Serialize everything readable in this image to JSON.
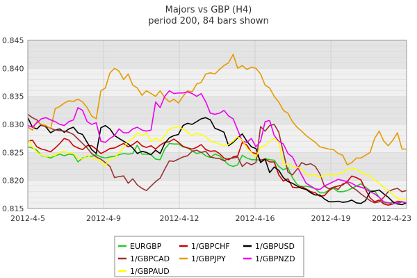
{
  "chart_data": {
    "type": "line",
    "title": "Majors vs GBP (H4)",
    "subtitle": "period 200, 84 bars shown",
    "xlabel": "",
    "ylabel": "",
    "x_ticks": [
      "2012-4-5",
      "2012-4-9",
      "2012-4-12",
      "2012-4-16",
      "2012-4-19",
      "2012-4-23"
    ],
    "y_ticks": [
      "0.815",
      "0.820",
      "0.825",
      "0.830",
      "0.835",
      "0.840",
      "0.845"
    ],
    "ylim": [
      0.815,
      0.845
    ],
    "grid": true,
    "legend_position": "bottom",
    "series": [
      {
        "name": "EURGBP",
        "color": "#22cc22",
        "values": [
          0.826,
          0.8258,
          0.8254,
          0.8244,
          0.8243,
          0.824,
          0.8244,
          0.8247,
          0.8244,
          0.8247,
          0.8246,
          0.8233,
          0.824,
          0.8243,
          0.8243,
          0.8246,
          0.8242,
          0.824,
          0.8242,
          0.8243,
          0.8246,
          0.8248,
          0.8247,
          0.8248,
          0.8263,
          0.8247,
          0.8247,
          0.8246,
          0.8238,
          0.8237,
          0.8256,
          0.8266,
          0.8265,
          0.8265,
          0.826,
          0.8258,
          0.8253,
          0.8248,
          0.825,
          0.8244,
          0.8241,
          0.8247,
          0.8244,
          0.8236,
          0.8228,
          0.8225,
          0.8228,
          0.8245,
          0.824,
          0.8237,
          0.8237,
          0.8236,
          0.8239,
          0.8237,
          0.8236,
          0.8225,
          0.8219,
          0.8223,
          0.8205,
          0.8193,
          0.8189,
          0.819,
          0.8188,
          0.8185,
          0.8178,
          0.8178,
          0.8183,
          0.8186,
          0.818,
          0.818,
          0.8182,
          0.8186,
          0.819,
          0.8194,
          0.8188,
          0.8182,
          0.8181,
          0.817,
          0.816,
          0.816,
          0.8161,
          0.8158,
          0.8162,
          0.816
        ]
      },
      {
        "name": "1/GBPCHF",
        "color": "#cc0000",
        "values": [
          0.827,
          0.8272,
          0.826,
          0.8256,
          0.8254,
          0.8251,
          0.8258,
          0.8266,
          0.8275,
          0.8272,
          0.8262,
          0.8258,
          0.8255,
          0.8262,
          0.8262,
          0.8256,
          0.8248,
          0.8252,
          0.8257,
          0.8258,
          0.8262,
          0.8266,
          0.826,
          0.8264,
          0.827,
          0.8262,
          0.8259,
          0.8262,
          0.8256,
          0.8263,
          0.8268,
          0.8269,
          0.8274,
          0.8268,
          0.8261,
          0.8258,
          0.8256,
          0.8259,
          0.8264,
          0.8255,
          0.8252,
          0.8253,
          0.8248,
          0.824,
          0.8237,
          0.8242,
          0.8244,
          0.8268,
          0.8263,
          0.825,
          0.8248,
          0.8236,
          0.8238,
          0.8233,
          0.8233,
          0.821,
          0.8199,
          0.8203,
          0.8188,
          0.8187,
          0.8189,
          0.8185,
          0.818,
          0.8178,
          0.8172,
          0.8173,
          0.8182,
          0.8188,
          0.819,
          0.8192,
          0.8198,
          0.8208,
          0.8205,
          0.8201,
          0.8184,
          0.8169,
          0.8162,
          0.8165,
          0.8158,
          0.8156,
          0.8158,
          0.8163,
          0.8162,
          0.816
        ]
      },
      {
        "name": "1/GBPUSD",
        "color": "#000000",
        "values": [
          0.8312,
          0.8295,
          0.8292,
          0.83,
          0.8295,
          0.8285,
          0.829,
          0.8292,
          0.8286,
          0.8292,
          0.8295,
          0.8285,
          0.8282,
          0.8268,
          0.8255,
          0.8248,
          0.8294,
          0.8298,
          0.8292,
          0.828,
          0.8275,
          0.827,
          0.8265,
          0.8258,
          0.8248,
          0.8252,
          0.825,
          0.8246,
          0.8254,
          0.8248,
          0.8266,
          0.8276,
          0.828,
          0.8282,
          0.8298,
          0.8302,
          0.83,
          0.8305,
          0.831,
          0.8312,
          0.8308,
          0.8293,
          0.829,
          0.8286,
          0.8262,
          0.8268,
          0.8276,
          0.8283,
          0.827,
          0.826,
          0.8257,
          0.8232,
          0.8238,
          0.8214,
          0.8224,
          0.8218,
          0.8205,
          0.8198,
          0.8195,
          0.819,
          0.8186,
          0.8184,
          0.8178,
          0.8174,
          0.8174,
          0.8167,
          0.8162,
          0.8162,
          0.8163,
          0.8161,
          0.8162,
          0.8165,
          0.816,
          0.8159,
          0.8164,
          0.818,
          0.8181,
          0.8183,
          0.8176,
          0.817,
          0.8162,
          0.8158,
          0.8157,
          0.816
        ]
      },
      {
        "name": "1/GBPCAD",
        "color": "#993333",
        "values": [
          0.8318,
          0.8312,
          0.8308,
          0.8298,
          0.8296,
          0.8293,
          0.829,
          0.8289,
          0.8288,
          0.8286,
          0.8282,
          0.8274,
          0.8266,
          0.8258,
          0.8248,
          0.8242,
          0.8238,
          0.8232,
          0.8225,
          0.8205,
          0.8207,
          0.8208,
          0.8195,
          0.8203,
          0.8192,
          0.8186,
          0.8182,
          0.819,
          0.8198,
          0.8204,
          0.822,
          0.8235,
          0.8234,
          0.8238,
          0.8242,
          0.8244,
          0.8252,
          0.8254,
          0.825,
          0.8252,
          0.8242,
          0.824,
          0.8239,
          0.8235,
          0.8239,
          0.824,
          0.8242,
          0.8225,
          0.8232,
          0.8228,
          0.8232,
          0.8296,
          0.8288,
          0.8298,
          0.83,
          0.8286,
          0.825,
          0.8215,
          0.821,
          0.822,
          0.8232,
          0.8228,
          0.823,
          0.8225,
          0.8212,
          0.819,
          0.8185,
          0.8188,
          0.8184,
          0.8194,
          0.8196,
          0.8188,
          0.8183,
          0.8176,
          0.817,
          0.8164,
          0.816,
          0.8162,
          0.817,
          0.818,
          0.8184,
          0.8186,
          0.818,
          0.8182
        ]
      },
      {
        "name": "1/GBPJPY",
        "color": "#e69a00",
        "values": [
          0.8295,
          0.829,
          0.8305,
          0.83,
          0.8298,
          0.8292,
          0.8328,
          0.8332,
          0.8338,
          0.8342,
          0.8341,
          0.8345,
          0.834,
          0.833,
          0.8315,
          0.831,
          0.836,
          0.8365,
          0.8392,
          0.84,
          0.8395,
          0.838,
          0.839,
          0.837,
          0.8365,
          0.8352,
          0.836,
          0.8355,
          0.835,
          0.836,
          0.8348,
          0.834,
          0.8345,
          0.8338,
          0.835,
          0.836,
          0.8358,
          0.8372,
          0.8375,
          0.839,
          0.8392,
          0.839,
          0.8398,
          0.8405,
          0.841,
          0.8425,
          0.84,
          0.8405,
          0.8398,
          0.8402,
          0.84,
          0.839,
          0.837,
          0.8365,
          0.835,
          0.834,
          0.8325,
          0.832,
          0.8305,
          0.8295,
          0.8288,
          0.828,
          0.8274,
          0.8268,
          0.826,
          0.8258,
          0.8256,
          0.8255,
          0.8248,
          0.8245,
          0.8228,
          0.8232,
          0.824,
          0.824,
          0.8245,
          0.825,
          0.8275,
          0.8288,
          0.827,
          0.8262,
          0.8272,
          0.8285,
          0.8256,
          0.8256
        ]
      },
      {
        "name": "1/GBPNZD",
        "color": "#ee00ee",
        "values": [
          0.8298,
          0.8295,
          0.8303,
          0.831,
          0.8312,
          0.8308,
          0.8305,
          0.83,
          0.8298,
          0.8305,
          0.8308,
          0.833,
          0.8325,
          0.8305,
          0.83,
          0.8303,
          0.827,
          0.8268,
          0.8275,
          0.828,
          0.8292,
          0.8285,
          0.8285,
          0.8292,
          0.8295,
          0.829,
          0.8288,
          0.829,
          0.834,
          0.833,
          0.835,
          0.836,
          0.8355,
          0.8356,
          0.8356,
          0.8358,
          0.8355,
          0.835,
          0.8355,
          0.834,
          0.832,
          0.8318,
          0.832,
          0.8325,
          0.8315,
          0.831,
          0.829,
          0.827,
          0.8268,
          0.8275,
          0.826,
          0.827,
          0.8305,
          0.8307,
          0.828,
          0.827,
          0.8265,
          0.8248,
          0.8242,
          0.8225,
          0.821,
          0.8195,
          0.819,
          0.8185,
          0.8184,
          0.819,
          0.8194,
          0.8198,
          0.8202,
          0.82,
          0.8198,
          0.8195,
          0.819,
          0.8188,
          0.8185,
          0.818,
          0.8176,
          0.817,
          0.8162,
          0.816,
          0.8158,
          0.816,
          0.8162,
          0.816
        ]
      },
      {
        "name": "1/GBPAUD",
        "color": "#ffff00",
        "values": [
          0.8275,
          0.826,
          0.825,
          0.8245,
          0.8243,
          0.8243,
          0.8245,
          0.825,
          0.8252,
          0.8249,
          0.8248,
          0.824,
          0.8238,
          0.8245,
          0.824,
          0.8238,
          0.8234,
          0.8225,
          0.824,
          0.824,
          0.825,
          0.8258,
          0.827,
          0.8275,
          0.8285,
          0.828,
          0.8285,
          0.827,
          0.8275,
          0.827,
          0.828,
          0.8292,
          0.8294,
          0.8296,
          0.8292,
          0.8286,
          0.828,
          0.8284,
          0.8282,
          0.8278,
          0.827,
          0.8268,
          0.8265,
          0.8262,
          0.8264,
          0.827,
          0.8278,
          0.8272,
          0.8258,
          0.825,
          0.8242,
          0.826,
          0.8262,
          0.827,
          0.8275,
          0.8268,
          0.8228,
          0.823,
          0.8225,
          0.8224,
          0.822,
          0.8212,
          0.8208,
          0.821,
          0.8205,
          0.821,
          0.8212,
          0.8208,
          0.8212,
          0.8214,
          0.822,
          0.8222,
          0.822,
          0.8215,
          0.821,
          0.8208,
          0.82,
          0.8195,
          0.8188,
          0.8182,
          0.8175,
          0.8168,
          0.8165,
          0.8168
        ]
      }
    ]
  }
}
